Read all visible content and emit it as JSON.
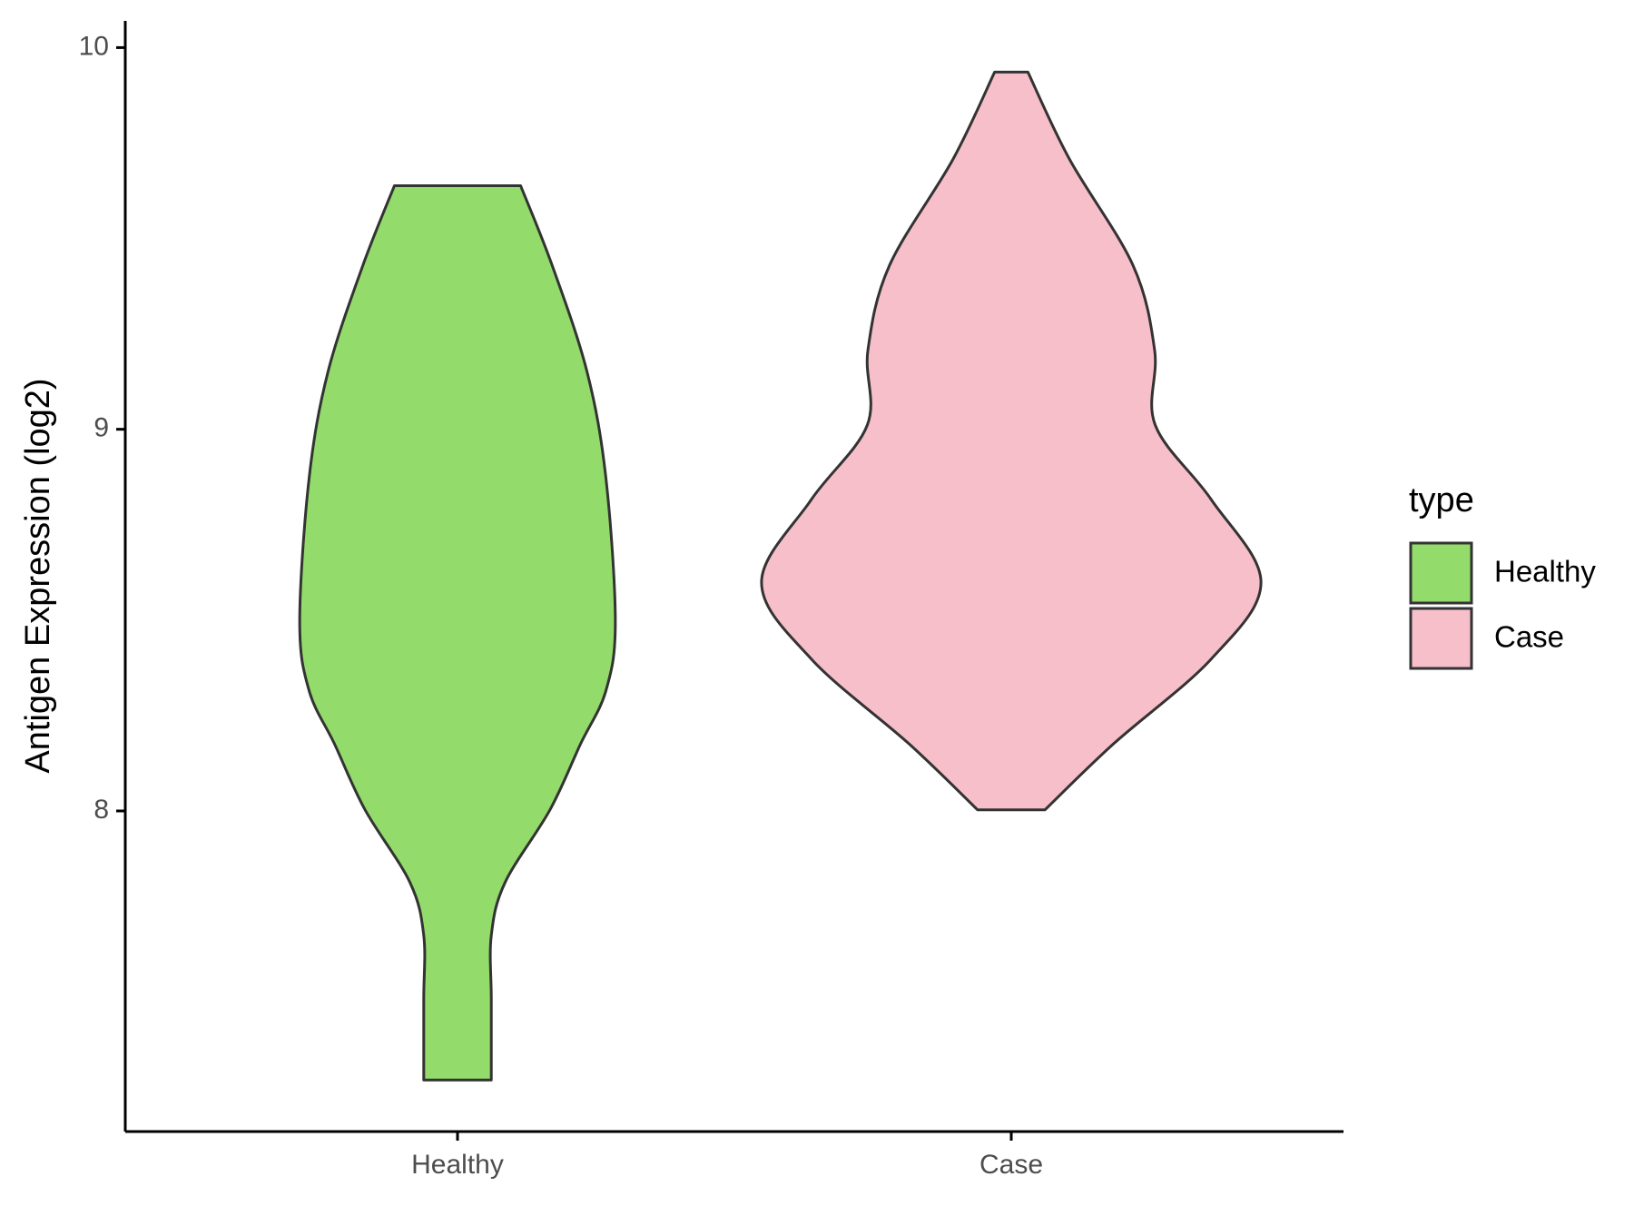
{
  "chart_data": {
    "type": "violin",
    "y_label": "Antigen Expression (log2)",
    "categories": [
      "Healthy",
      "Case"
    ],
    "legend_title": "type",
    "legend_position": "right",
    "xlim": [
      0.4,
      2.6
    ],
    "ylim": [
      7.16,
      10.07
    ],
    "yticks": [
      8,
      9,
      10
    ],
    "series": [
      {
        "name": "Healthy",
        "color": "#93dc6b",
        "y": [
          9.638,
          9.429,
          9.15,
          8.872,
          8.496,
          8.315,
          8.175,
          8.003,
          7.813,
          7.674,
          7.507,
          7.295
        ],
        "width": [
          0.114,
          0.171,
          0.234,
          0.268,
          0.285,
          0.268,
          0.222,
          0.167,
          0.086,
          0.061,
          0.061,
          0.061
        ]
      },
      {
        "name": "Case",
        "color": "#f7bfca",
        "y": [
          9.936,
          9.708,
          9.429,
          9.206,
          9.011,
          8.816,
          8.599,
          8.398,
          8.175,
          8.003
        ],
        "width": [
          0.03,
          0.105,
          0.22,
          0.259,
          0.26,
          0.361,
          0.451,
          0.361,
          0.184,
          0.061
        ]
      }
    ]
  }
}
